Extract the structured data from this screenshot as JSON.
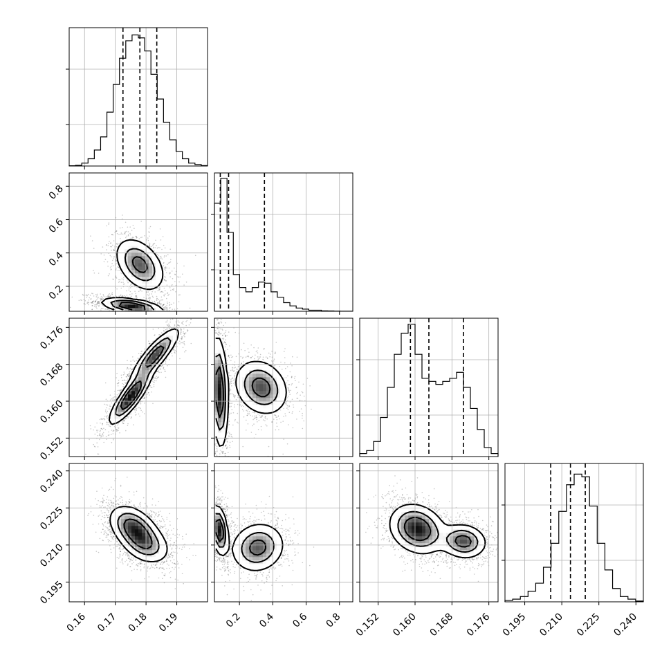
{
  "chart_data": {
    "type": "corner",
    "title": "",
    "variables": [
      "",
      "",
      "",
      ""
    ],
    "grid": true,
    "line_color": "#000000",
    "fill_color": "#000000",
    "quantile_line_style": "dashed",
    "axes": [
      {
        "range": [
          0.155,
          0.2
        ],
        "ticks": [
          0.16,
          0.17,
          0.18,
          0.19
        ],
        "tick_labels": [
          "0.16",
          "0.17",
          "0.18",
          "0.19"
        ]
      },
      {
        "range": [
          0.05,
          0.88
        ],
        "ticks": [
          0.2,
          0.4,
          0.6,
          0.8
        ],
        "tick_labels": [
          "0.2",
          "0.4",
          "0.6",
          "0.8"
        ]
      },
      {
        "range": [
          0.148,
          0.178
        ],
        "ticks": [
          0.152,
          0.16,
          0.168,
          0.176
        ],
        "tick_labels": [
          "0.152",
          "0.160",
          "0.168",
          "0.176"
        ]
      },
      {
        "range": [
          0.187,
          0.243
        ],
        "ticks": [
          0.195,
          0.21,
          0.225,
          0.24
        ],
        "tick_labels": [
          "0.195",
          "0.210",
          "0.225",
          "0.240"
        ]
      }
    ],
    "histograms": [
      {
        "variable": 0,
        "bin_range": [
          0.155,
          0.2
        ],
        "counts": [
          0.2,
          0.5,
          2,
          5,
          11,
          20,
          37,
          56,
          74,
          86,
          90,
          88,
          79,
          63,
          46,
          30,
          18,
          10,
          5,
          2,
          1,
          0.3
        ],
        "ylim": [
          0,
          95
        ],
        "quantiles": [
          0.1725,
          0.178,
          0.1835
        ]
      },
      {
        "variable": 1,
        "bin_range": [
          0.05,
          0.88
        ],
        "counts": [
          100,
          123,
          73,
          34,
          22,
          18,
          22,
          27,
          26,
          18,
          13,
          8,
          5,
          3,
          2,
          1,
          1,
          0.4,
          0.3,
          0.2,
          0.1,
          0.1
        ],
        "ylim": [
          0,
          128
        ],
        "quantiles": [
          0.085,
          0.135,
          0.35
        ]
      },
      {
        "variable": 2,
        "bin_range": [
          0.148,
          0.178
        ],
        "counts": [
          1,
          2,
          5,
          13,
          23,
          34,
          41,
          44,
          34,
          26,
          25,
          24,
          25,
          26,
          28,
          23,
          16,
          9,
          3,
          1
        ],
        "ylim": [
          0,
          46
        ],
        "quantiles": [
          0.159,
          0.163,
          0.1705
        ]
      },
      {
        "variable": 3,
        "bin_range": [
          0.187,
          0.243
        ],
        "counts": [
          0.5,
          1,
          2,
          4,
          7,
          13,
          22,
          34,
          44,
          48,
          47,
          36,
          22,
          12,
          5,
          2,
          1,
          0.3
        ],
        "ylim": [
          0,
          52
        ],
        "quantiles": [
          0.2055,
          0.2135,
          0.2195
        ]
      }
    ],
    "pairs": [
      {
        "x": 0,
        "y": 1,
        "clusters": [
          {
            "mean": [
              0.1755,
              0.08
            ],
            "sd": [
              0.005,
              0.025
            ],
            "rho": -0.5,
            "weight": 0.55
          },
          {
            "mean": [
              0.178,
              0.33
            ],
            "sd": [
              0.004,
              0.08
            ],
            "rho": -0.4,
            "weight": 0.45
          }
        ]
      },
      {
        "x": 0,
        "y": 2,
        "clusters": [
          {
            "mean": [
              0.175,
              0.161
            ],
            "sd": [
              0.0035,
              0.003
            ],
            "rho": 0.85,
            "weight": 0.55
          },
          {
            "mean": [
              0.183,
              0.17
            ],
            "sd": [
              0.004,
              0.003
            ],
            "rho": 0.85,
            "weight": 0.45
          }
        ]
      },
      {
        "x": 0,
        "y": 3,
        "clusters": [
          {
            "mean": [
              0.176,
              0.217
            ],
            "sd": [
              0.004,
              0.0045
            ],
            "rho": -0.4,
            "weight": 0.6
          },
          {
            "mean": [
              0.18,
              0.21
            ],
            "sd": [
              0.004,
              0.004
            ],
            "rho": -0.3,
            "weight": 0.4
          }
        ]
      },
      {
        "x": 1,
        "y": 2,
        "clusters": [
          {
            "mean": [
              0.08,
              0.162
            ],
            "sd": [
              0.025,
              0.006
            ],
            "rho": -0.2,
            "weight": 0.55
          },
          {
            "mean": [
              0.33,
              0.163
            ],
            "sd": [
              0.08,
              0.003
            ],
            "rho": -0.2,
            "weight": 0.45
          }
        ]
      },
      {
        "x": 1,
        "y": 3,
        "clusters": [
          {
            "mean": [
              0.08,
              0.216
            ],
            "sd": [
              0.025,
              0.005
            ],
            "rho": -0.3,
            "weight": 0.55
          },
          {
            "mean": [
              0.31,
              0.209
            ],
            "sd": [
              0.08,
              0.005
            ],
            "rho": 0.1,
            "weight": 0.45
          }
        ]
      },
      {
        "x": 2,
        "y": 3,
        "clusters": [
          {
            "mean": [
              0.1605,
              0.2165
            ],
            "sd": [
              0.003,
              0.005
            ],
            "rho": -0.2,
            "weight": 0.55
          },
          {
            "mean": [
              0.1705,
              0.2115
            ],
            "sd": [
              0.0025,
              0.0035
            ],
            "rho": -0.1,
            "weight": 0.45
          }
        ]
      }
    ]
  }
}
